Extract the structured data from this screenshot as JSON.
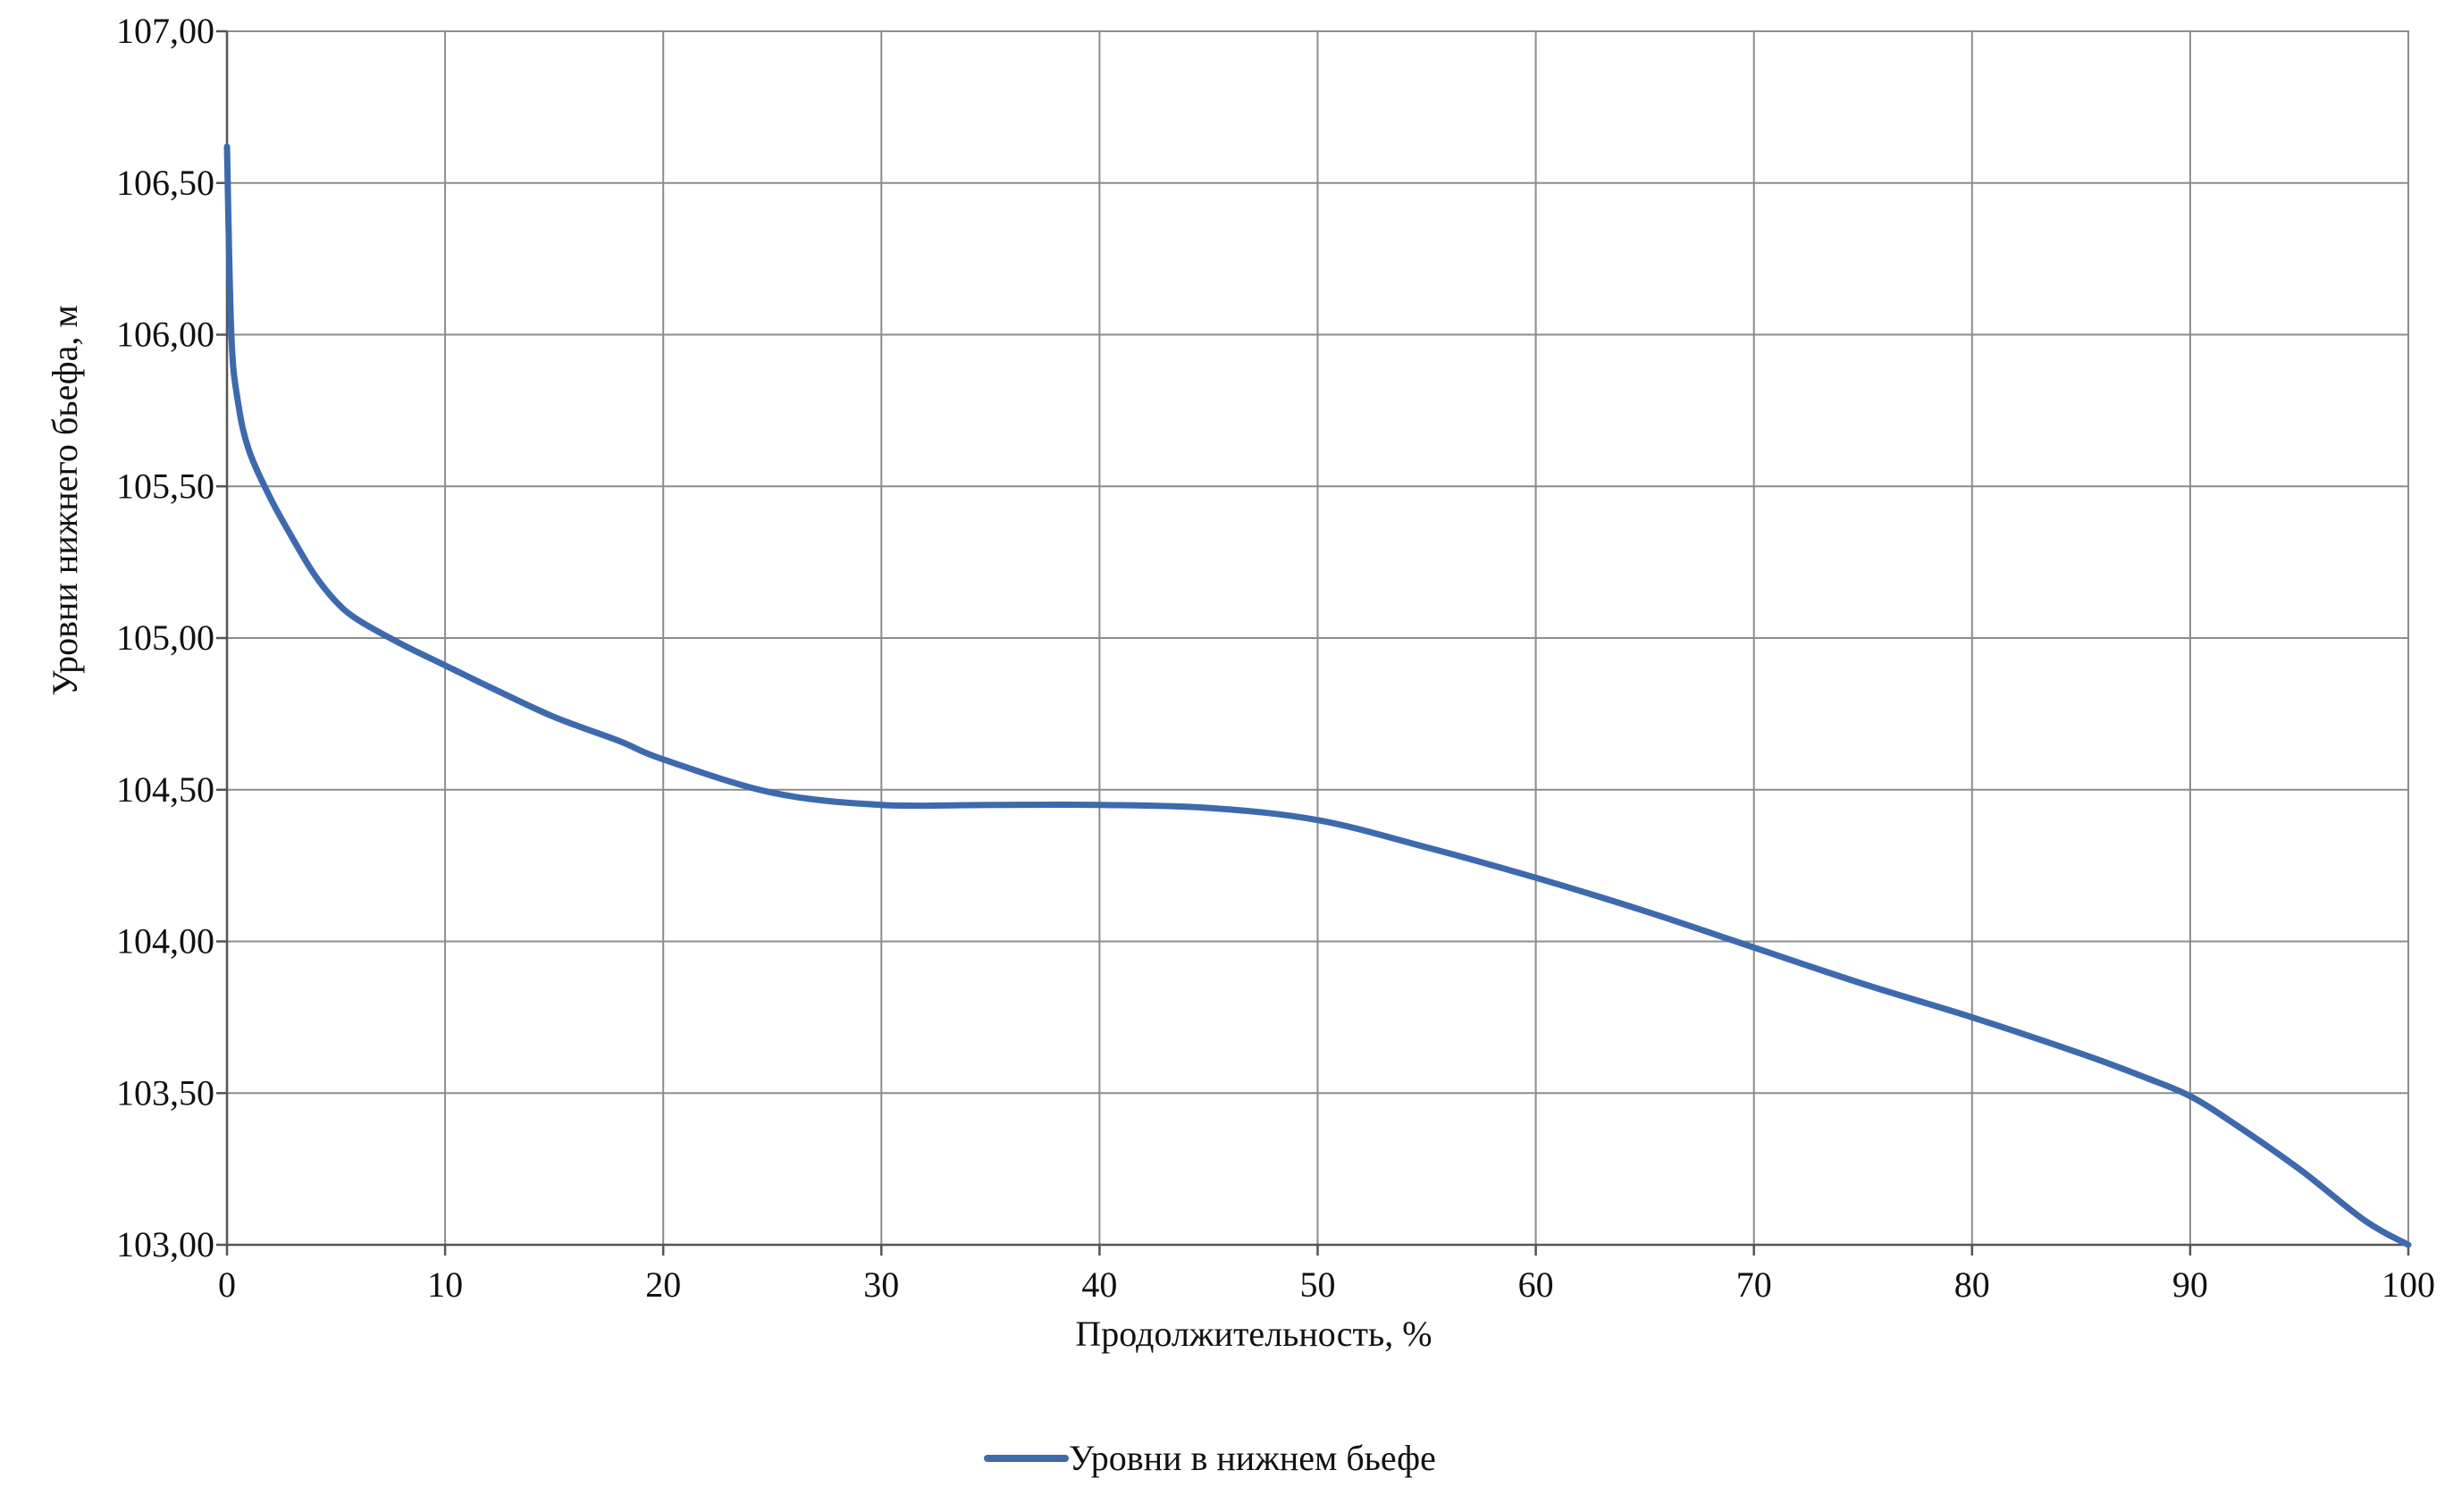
{
  "chart_data": {
    "type": "line",
    "title": "",
    "xlabel": "Продолжительность, %",
    "ylabel": "Уровни нижнего бьефа, м",
    "xlim": [
      0,
      100
    ],
    "ylim": [
      103.0,
      107.0
    ],
    "xticks": [
      0,
      10,
      20,
      30,
      40,
      50,
      60,
      70,
      80,
      90,
      100
    ],
    "xtick_labels": [
      "0",
      "10",
      "20",
      "30",
      "40",
      "50",
      "60",
      "70",
      "80",
      "90",
      "100"
    ],
    "yticks": [
      103.0,
      103.5,
      104.0,
      104.5,
      105.0,
      105.5,
      106.0,
      106.5,
      107.0
    ],
    "ytick_labels": [
      "103,00",
      "103,50",
      "104,00",
      "104,50",
      "105,00",
      "105,50",
      "106,00",
      "106,50",
      "107,00"
    ],
    "grid": true,
    "legend_position": "bottom-center",
    "colors": {
      "series": "#3d6aad",
      "grid": "#8c8c8c"
    },
    "series": [
      {
        "name": "Уровни в нижнем бьефе",
        "x": [
          0,
          0.2,
          0.5,
          1,
          2,
          3,
          4,
          5,
          6,
          8,
          10,
          12,
          15,
          18,
          20,
          25,
          30,
          35,
          40,
          45,
          50,
          55,
          60,
          65,
          70,
          75,
          80,
          85,
          88,
          90,
          92,
          95,
          98,
          100
        ],
        "y": [
          106.62,
          106.0,
          105.78,
          105.62,
          105.46,
          105.33,
          105.21,
          105.12,
          105.06,
          104.98,
          104.91,
          104.84,
          104.74,
          104.66,
          104.6,
          104.49,
          104.45,
          104.45,
          104.45,
          104.44,
          104.4,
          104.31,
          104.21,
          104.1,
          103.98,
          103.86,
          103.75,
          103.63,
          103.55,
          103.49,
          103.4,
          103.25,
          103.08,
          103.0
        ]
      }
    ]
  }
}
